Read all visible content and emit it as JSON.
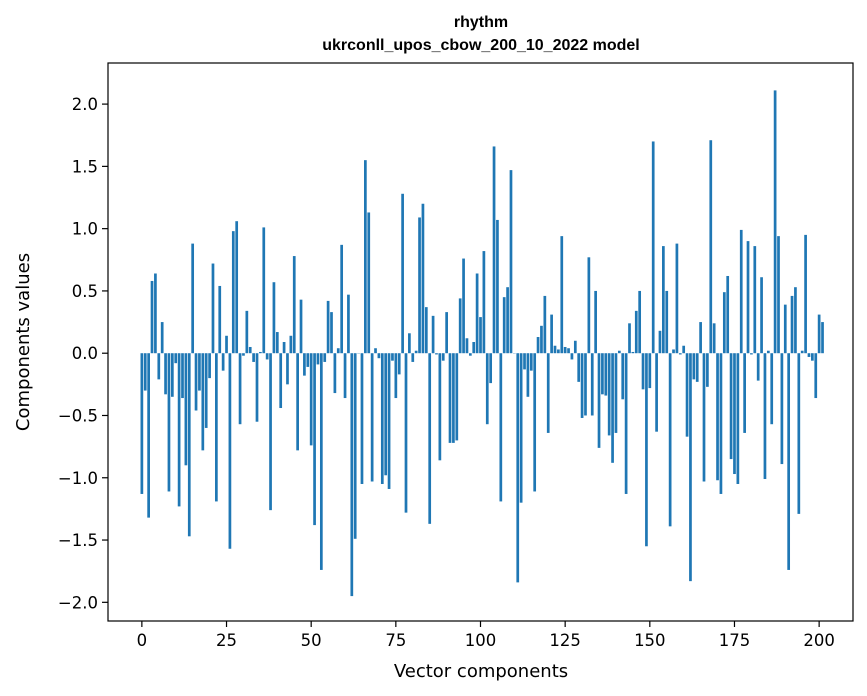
{
  "chart_data": {
    "type": "bar",
    "title": "rhythm",
    "subtitle": "ukrconll_upos_cbow_200_10_2022 model",
    "xlabel": "Vector components",
    "ylabel": "Components values",
    "xlim": [
      -10,
      210
    ],
    "ylim": [
      -2.15,
      2.33
    ],
    "xticks": [
      0,
      25,
      50,
      75,
      100,
      125,
      150,
      175,
      200
    ],
    "xtick_labels": [
      "0",
      "25",
      "50",
      "75",
      "100",
      "125",
      "150",
      "175",
      "200"
    ],
    "yticks": [
      -2.0,
      -1.5,
      -1.0,
      -0.5,
      0.0,
      0.5,
      1.0,
      1.5,
      2.0
    ],
    "ytick_labels": [
      "−2.0",
      "−1.5",
      "−1.0",
      "−0.5",
      "0.0",
      "0.5",
      "1.0",
      "1.5",
      "2.0"
    ],
    "bar_color": "#1f77b4",
    "grid": false,
    "values": [
      -1.13,
      -0.3,
      -1.32,
      0.58,
      0.64,
      -0.21,
      0.25,
      -0.33,
      -1.11,
      -0.35,
      -0.08,
      -1.23,
      -0.36,
      -0.9,
      -1.47,
      0.88,
      -0.46,
      -0.3,
      -0.78,
      -0.6,
      -0.2,
      0.72,
      -1.19,
      0.54,
      -0.14,
      0.14,
      -1.57,
      0.98,
      1.06,
      -0.57,
      -0.02,
      0.34,
      0.05,
      -0.07,
      -0.55,
      0.01,
      1.01,
      -0.05,
      -1.26,
      0.57,
      0.17,
      -0.44,
      0.09,
      -0.25,
      0.14,
      0.78,
      -0.78,
      0.43,
      -0.18,
      -0.11,
      -0.74,
      -1.38,
      -0.09,
      -1.74,
      -0.07,
      0.42,
      0.33,
      -0.32,
      0.04,
      0.87,
      -0.36,
      0.47,
      -1.95,
      -1.49,
      0.0,
      -1.05,
      1.55,
      1.13,
      -1.03,
      0.04,
      -0.04,
      -1.05,
      -0.98,
      -1.09,
      -0.06,
      -0.36,
      -0.17,
      1.28,
      -1.28,
      0.16,
      -0.07,
      0.02,
      1.09,
      1.2,
      0.37,
      -1.37,
      0.3,
      -0.01,
      -0.86,
      -0.06,
      0.33,
      -0.72,
      -0.72,
      -0.7,
      0.44,
      0.76,
      0.12,
      -0.02,
      0.09,
      0.64,
      0.29,
      0.82,
      -0.57,
      -0.24,
      1.66,
      1.07,
      -1.19,
      0.45,
      0.53,
      1.47,
      0.0,
      -1.84,
      -1.2,
      -0.13,
      -0.35,
      -0.14,
      -1.11,
      0.13,
      0.22,
      0.46,
      -0.64,
      0.31,
      0.06,
      0.03,
      0.94,
      0.05,
      0.04,
      -0.05,
      0.1,
      -0.23,
      -0.52,
      -0.5,
      0.77,
      -0.5,
      0.5,
      -0.76,
      -0.33,
      -0.34,
      -0.66,
      -0.88,
      -0.64,
      0.02,
      -0.37,
      -1.13,
      0.24,
      0.01,
      0.34,
      0.5,
      -0.29,
      -1.55,
      -0.28,
      1.7,
      -0.63,
      0.18,
      0.86,
      0.5,
      -1.39,
      0.03,
      0.88,
      -0.01,
      0.06,
      -0.67,
      -1.83,
      -0.21,
      -0.23,
      0.25,
      -1.03,
      -0.27,
      1.71,
      0.24,
      -1.02,
      -1.13,
      0.49,
      0.62,
      -0.85,
      -0.97,
      -1.05,
      0.99,
      -0.64,
      0.9,
      -0.01,
      0.86,
      -0.22,
      0.61,
      -1.01,
      0.02,
      -0.57,
      2.11,
      0.94,
      -0.89,
      0.39,
      -1.74,
      0.46,
      0.53,
      -1.29,
      0.02,
      0.95,
      -0.03,
      -0.06,
      -0.36,
      0.31,
      0.25
    ]
  }
}
